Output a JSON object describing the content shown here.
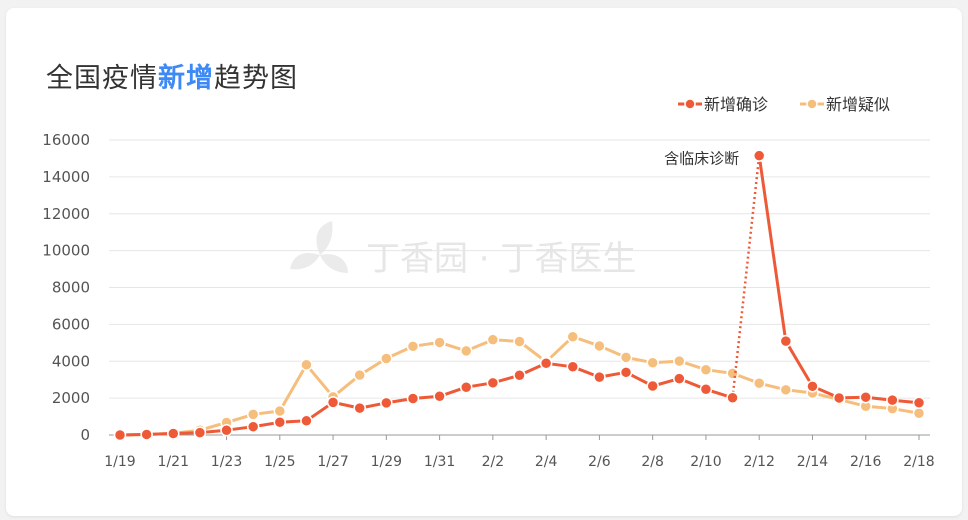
{
  "title": {
    "part1": "全国疫情",
    "highlight": "新增",
    "part2": "趋势图"
  },
  "watermark": "丁香园 · 丁香医生",
  "colors": {
    "confirmed": "#ee5a37",
    "suspected": "#f6be7c",
    "grid": "#e6e6e6",
    "axis": "#999999"
  },
  "chart_data": {
    "type": "line",
    "title": "全国疫情新增趋势图",
    "xlabel": "",
    "ylabel": "",
    "ylim": [
      0,
      16000
    ],
    "yticks": [
      0,
      2000,
      4000,
      6000,
      8000,
      10000,
      12000,
      14000,
      16000
    ],
    "grid": true,
    "legend_position": "top-right",
    "x": [
      "1/19",
      "1/20",
      "1/21",
      "1/22",
      "1/23",
      "1/24",
      "1/25",
      "1/26",
      "1/27",
      "1/28",
      "1/29",
      "1/30",
      "1/31",
      "2/1",
      "2/2",
      "2/3",
      "2/4",
      "2/5",
      "2/6",
      "2/7",
      "2/8",
      "2/9",
      "2/10",
      "2/11",
      "2/12",
      "2/13",
      "2/14",
      "2/15",
      "2/16",
      "2/17",
      "2/18"
    ],
    "xtick_labels": [
      "1/19",
      "1/21",
      "1/23",
      "1/25",
      "1/27",
      "1/29",
      "1/31",
      "2/2",
      "2/4",
      "2/6",
      "2/8",
      "2/10",
      "2/12",
      "2/14",
      "2/16",
      "2/18"
    ],
    "series": [
      {
        "name": "新增确诊",
        "color": "#ee5a37",
        "values": [
          0,
          30,
          80,
          130,
          260,
          450,
          690,
          770,
          1770,
          1460,
          1740,
          1980,
          2100,
          2590,
          2830,
          3240,
          3890,
          3700,
          3140,
          3400,
          2660,
          3060,
          2480,
          2020,
          15150,
          5090,
          2640,
          2010,
          2050,
          1890,
          1750
        ]
      },
      {
        "name": "新增疑似",
        "color": "#f6be7c",
        "values": [
          0,
          20,
          100,
          260,
          680,
          1120,
          1300,
          3810,
          2070,
          3250,
          4150,
          4810,
          5020,
          4560,
          5170,
          5070,
          3970,
          5330,
          4830,
          4210,
          3920,
          4010,
          3540,
          3340,
          2810,
          2450,
          2280,
          1920,
          1560,
          1430,
          1180
        ]
      }
    ],
    "annotation": {
      "text": "含临床诊断",
      "x": "2/12",
      "value": 15150
    }
  }
}
